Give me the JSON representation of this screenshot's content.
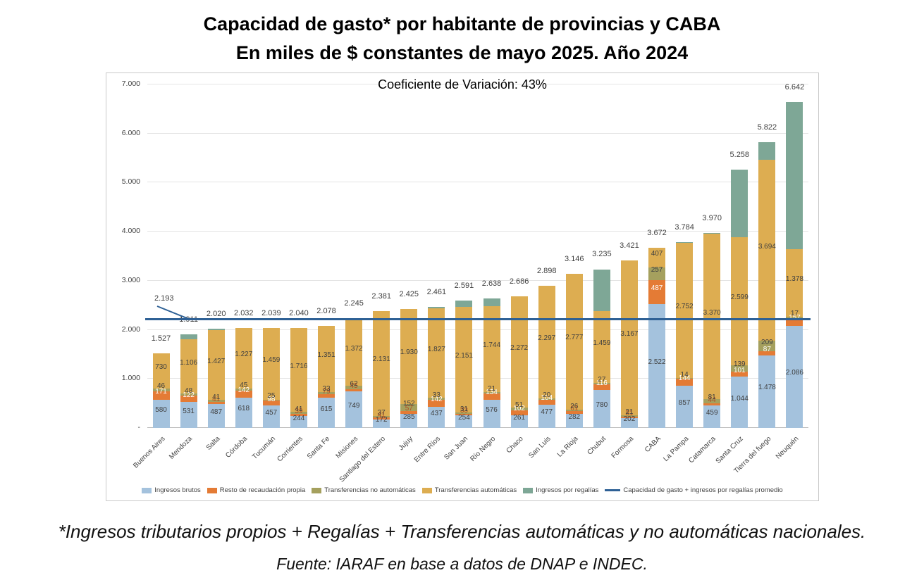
{
  "header": {
    "title_line1": "Capacidad de gasto* por habitante de provincias y CABA",
    "title_line2": "En miles de $ constantes de mayo 2025. Año 2024"
  },
  "footer": {
    "note": "*Ingresos tributarios propios + Regalías + Transferencias  automáticas y no automáticas nacionales.",
    "source": "Fuente: IARAF en base a datos de DNAP e INDEC."
  },
  "chart_data": {
    "type": "stacked-bar",
    "title": "Capacidad de gasto* por habitante de provincias y CABA",
    "subtitle": "En miles de $ constantes de mayo 2025. Año 2024",
    "inner_title": "Coeficiente de Variación:  43%",
    "ylabel": "miles de $ constantes de mayo 2025",
    "axis": {
      "ymax": 7000,
      "ticks": [
        {
          "value": 7000,
          "label": "7.000"
        },
        {
          "value": 6000,
          "label": "6.000"
        },
        {
          "value": 5000,
          "label": "5.000"
        },
        {
          "value": 4000,
          "label": "4.000"
        },
        {
          "value": 3000,
          "label": "3.000"
        },
        {
          "value": 2000,
          "label": "2.000"
        },
        {
          "value": 1000,
          "label": "1.000"
        },
        {
          "value": 0,
          "label": "-"
        }
      ]
    },
    "series": [
      {
        "key": "ingresos_brutos",
        "label": "Ingresos brutos",
        "color": "#a4c2dd"
      },
      {
        "key": "resto_recaudacion",
        "label": "Resto de recaudación propia",
        "color": "#e47b35"
      },
      {
        "key": "transf_no_automaticas",
        "label": "Transferencias no automáticas",
        "color": "#a5a05e"
      },
      {
        "key": "transf_automaticas",
        "label": "Transferencias automáticas",
        "color": "#ddad51"
      },
      {
        "key": "regalias",
        "label": "Ingresos por regalías",
        "color": "#7ea796"
      }
    ],
    "average": {
      "value": 2193,
      "label": "2.193",
      "legend_label": "Capacidad de gasto + ingresos por regalías promedio",
      "color": "#2e6095"
    },
    "provinces": [
      {
        "name": "Buenos Aires",
        "ingresos_brutos": 580,
        "resto_recaudacion": 171,
        "transf_no_automaticas": 46,
        "transf_automaticas": 730,
        "regalias": 0,
        "total": 1527
      },
      {
        "name": "Mendoza",
        "ingresos_brutos": 531,
        "resto_recaudacion": 122,
        "transf_no_automaticas": 48,
        "transf_automaticas": 1106,
        "regalias": 104,
        "total": 1911
      },
      {
        "name": "Salta",
        "ingresos_brutos": 487,
        "resto_recaudacion": 41,
        "transf_no_automaticas": 41,
        "transf_automaticas": 1427,
        "regalias": 24,
        "total": 2020
      },
      {
        "name": "Córdoba",
        "ingresos_brutos": 618,
        "resto_recaudacion": 142,
        "transf_no_automaticas": 45,
        "transf_automaticas": 1227,
        "regalias": 0,
        "total": 2032
      },
      {
        "name": "Tucumán",
        "ingresos_brutos": 457,
        "resto_recaudacion": 98,
        "transf_no_automaticas": 25,
        "transf_automaticas": 1459,
        "regalias": 0,
        "total": 2039
      },
      {
        "name": "Corrientes",
        "ingresos_brutos": 244,
        "resto_recaudacion": 39,
        "transf_no_automaticas": 41,
        "transf_automaticas": 1716,
        "regalias": 0,
        "total": 2040
      },
      {
        "name": "Santa Fe",
        "ingresos_brutos": 615,
        "resto_recaudacion": 79,
        "transf_no_automaticas": 33,
        "transf_automaticas": 1351,
        "regalias": 0,
        "total": 2078
      },
      {
        "name": "Misiones",
        "ingresos_brutos": 749,
        "resto_recaudacion": 45,
        "transf_no_automaticas": 62,
        "transf_automaticas": 1372,
        "regalias": 17,
        "total": 2245
      },
      {
        "name": "Santiago del Estero",
        "ingresos_brutos": 172,
        "resto_recaudacion": 41,
        "transf_no_automaticas": 37,
        "transf_automaticas": 2131,
        "regalias": 0,
        "total": 2381
      },
      {
        "name": "Jujuy",
        "ingresos_brutos": 285,
        "resto_recaudacion": 57,
        "transf_no_automaticas": 152,
        "transf_automaticas": 1930,
        "regalias": 0,
        "total": 2425
      },
      {
        "name": "Entre Ríos",
        "ingresos_brutos": 437,
        "resto_recaudacion": 142,
        "transf_no_automaticas": 33,
        "transf_automaticas": 1827,
        "regalias": 22,
        "total": 2461
      },
      {
        "name": "San Juan",
        "ingresos_brutos": 254,
        "resto_recaudacion": 33,
        "transf_no_automaticas": 31,
        "transf_automaticas": 2151,
        "regalias": 122,
        "total": 2591
      },
      {
        "name": "Río Negro",
        "ingresos_brutos": 576,
        "resto_recaudacion": 134,
        "transf_no_automaticas": 21,
        "transf_automaticas": 1744,
        "regalias": 163,
        "total": 2638
      },
      {
        "name": "Chaco",
        "ingresos_brutos": 261,
        "resto_recaudacion": 102,
        "transf_no_automaticas": 51,
        "transf_automaticas": 2272,
        "regalias": 0,
        "total": 2686
      },
      {
        "name": "San Luis",
        "ingresos_brutos": 477,
        "resto_recaudacion": 104,
        "transf_no_automaticas": 20,
        "transf_automaticas": 2297,
        "regalias": 0,
        "total": 2898
      },
      {
        "name": "La Rioja",
        "ingresos_brutos": 282,
        "resto_recaudacion": 61,
        "transf_no_automaticas": 26,
        "transf_automaticas": 2777,
        "regalias": 0,
        "total": 3146
      },
      {
        "name": "Chubut",
        "ingresos_brutos": 780,
        "resto_recaudacion": 116,
        "transf_no_automaticas": 27,
        "transf_automaticas": 1459,
        "regalias": 853,
        "total": 3235
      },
      {
        "name": "Formosa",
        "ingresos_brutos": 202,
        "resto_recaudacion": 31,
        "transf_no_automaticas": 21,
        "transf_automaticas": 3167,
        "regalias": 0,
        "total": 3421
      },
      {
        "name": "CABA",
        "ingresos_brutos": 2522,
        "resto_recaudacion": 487,
        "transf_no_automaticas": 257,
        "transf_automaticas": 407,
        "regalias": 0,
        "total": 3672
      },
      {
        "name": "La Pampa",
        "ingresos_brutos": 857,
        "resto_recaudacion": 144,
        "transf_no_automaticas": 14,
        "transf_automaticas": 2752,
        "regalias": 17,
        "total": 3784
      },
      {
        "name": "Catamarca",
        "ingresos_brutos": 459,
        "resto_recaudacion": 44,
        "transf_no_automaticas": 81,
        "transf_automaticas": 3370,
        "regalias": 16,
        "total": 3970
      },
      {
        "name": "Santa Cruz",
        "ingresos_brutos": 1044,
        "resto_recaudacion": 101,
        "transf_no_automaticas": 139,
        "transf_automaticas": 2599,
        "regalias": 1375,
        "total": 5258
      },
      {
        "name": "Tierra del fuego",
        "ingresos_brutos": 1478,
        "resto_recaudacion": 87,
        "transf_no_automaticas": 209,
        "transf_automaticas": 3694,
        "regalias": 354,
        "total": 5822
      },
      {
        "name": "Neuquén",
        "ingresos_brutos": 2086,
        "resto_recaudacion": 157,
        "transf_no_automaticas": 17,
        "transf_automaticas": 1378,
        "regalias": 3004,
        "total": 6642
      }
    ],
    "legend_position": "bottom",
    "grid": true
  }
}
